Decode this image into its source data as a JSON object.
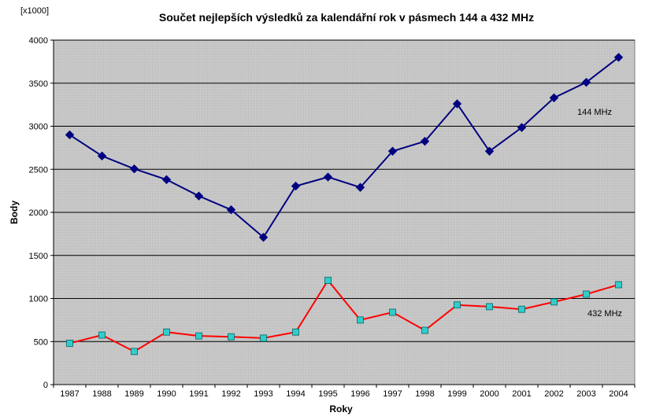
{
  "chart_data": {
    "type": "line",
    "title": "Součet nejlepších výsledků za kalendářní rok v pásmech 144 a 432 MHz",
    "xlabel": "Roky",
    "ylabel": "Body",
    "y_unit": "[x1000]",
    "ylim": [
      0,
      4000
    ],
    "y_ticks": [
      0,
      500,
      1000,
      1500,
      2000,
      2500,
      3000,
      3500,
      4000
    ],
    "grid": true,
    "categories": [
      "1987",
      "1988",
      "1989",
      "1990",
      "1991",
      "1992",
      "1993",
      "1994",
      "1995",
      "1996",
      "1997",
      "1998",
      "1999",
      "2000",
      "2001",
      "2002",
      "2003",
      "2004"
    ],
    "series": [
      {
        "name": "144 MHz",
        "color": "#000080",
        "marker": "diamond",
        "values": [
          2900,
          2655,
          2505,
          2380,
          2190,
          2030,
          1710,
          2305,
          2410,
          2290,
          2710,
          2825,
          3260,
          2710,
          2985,
          3330,
          3510,
          3800
        ]
      },
      {
        "name": "432 MHz",
        "color": "#ff0000",
        "marker_fill": "#33cccc",
        "marker": "square",
        "values": [
          480,
          575,
          385,
          610,
          565,
          555,
          540,
          610,
          1210,
          750,
          840,
          630,
          925,
          905,
          875,
          960,
          1050,
          1160
        ]
      }
    ],
    "colors": {
      "plot_background": "#c0c0c0",
      "gridline": "#000000"
    }
  }
}
